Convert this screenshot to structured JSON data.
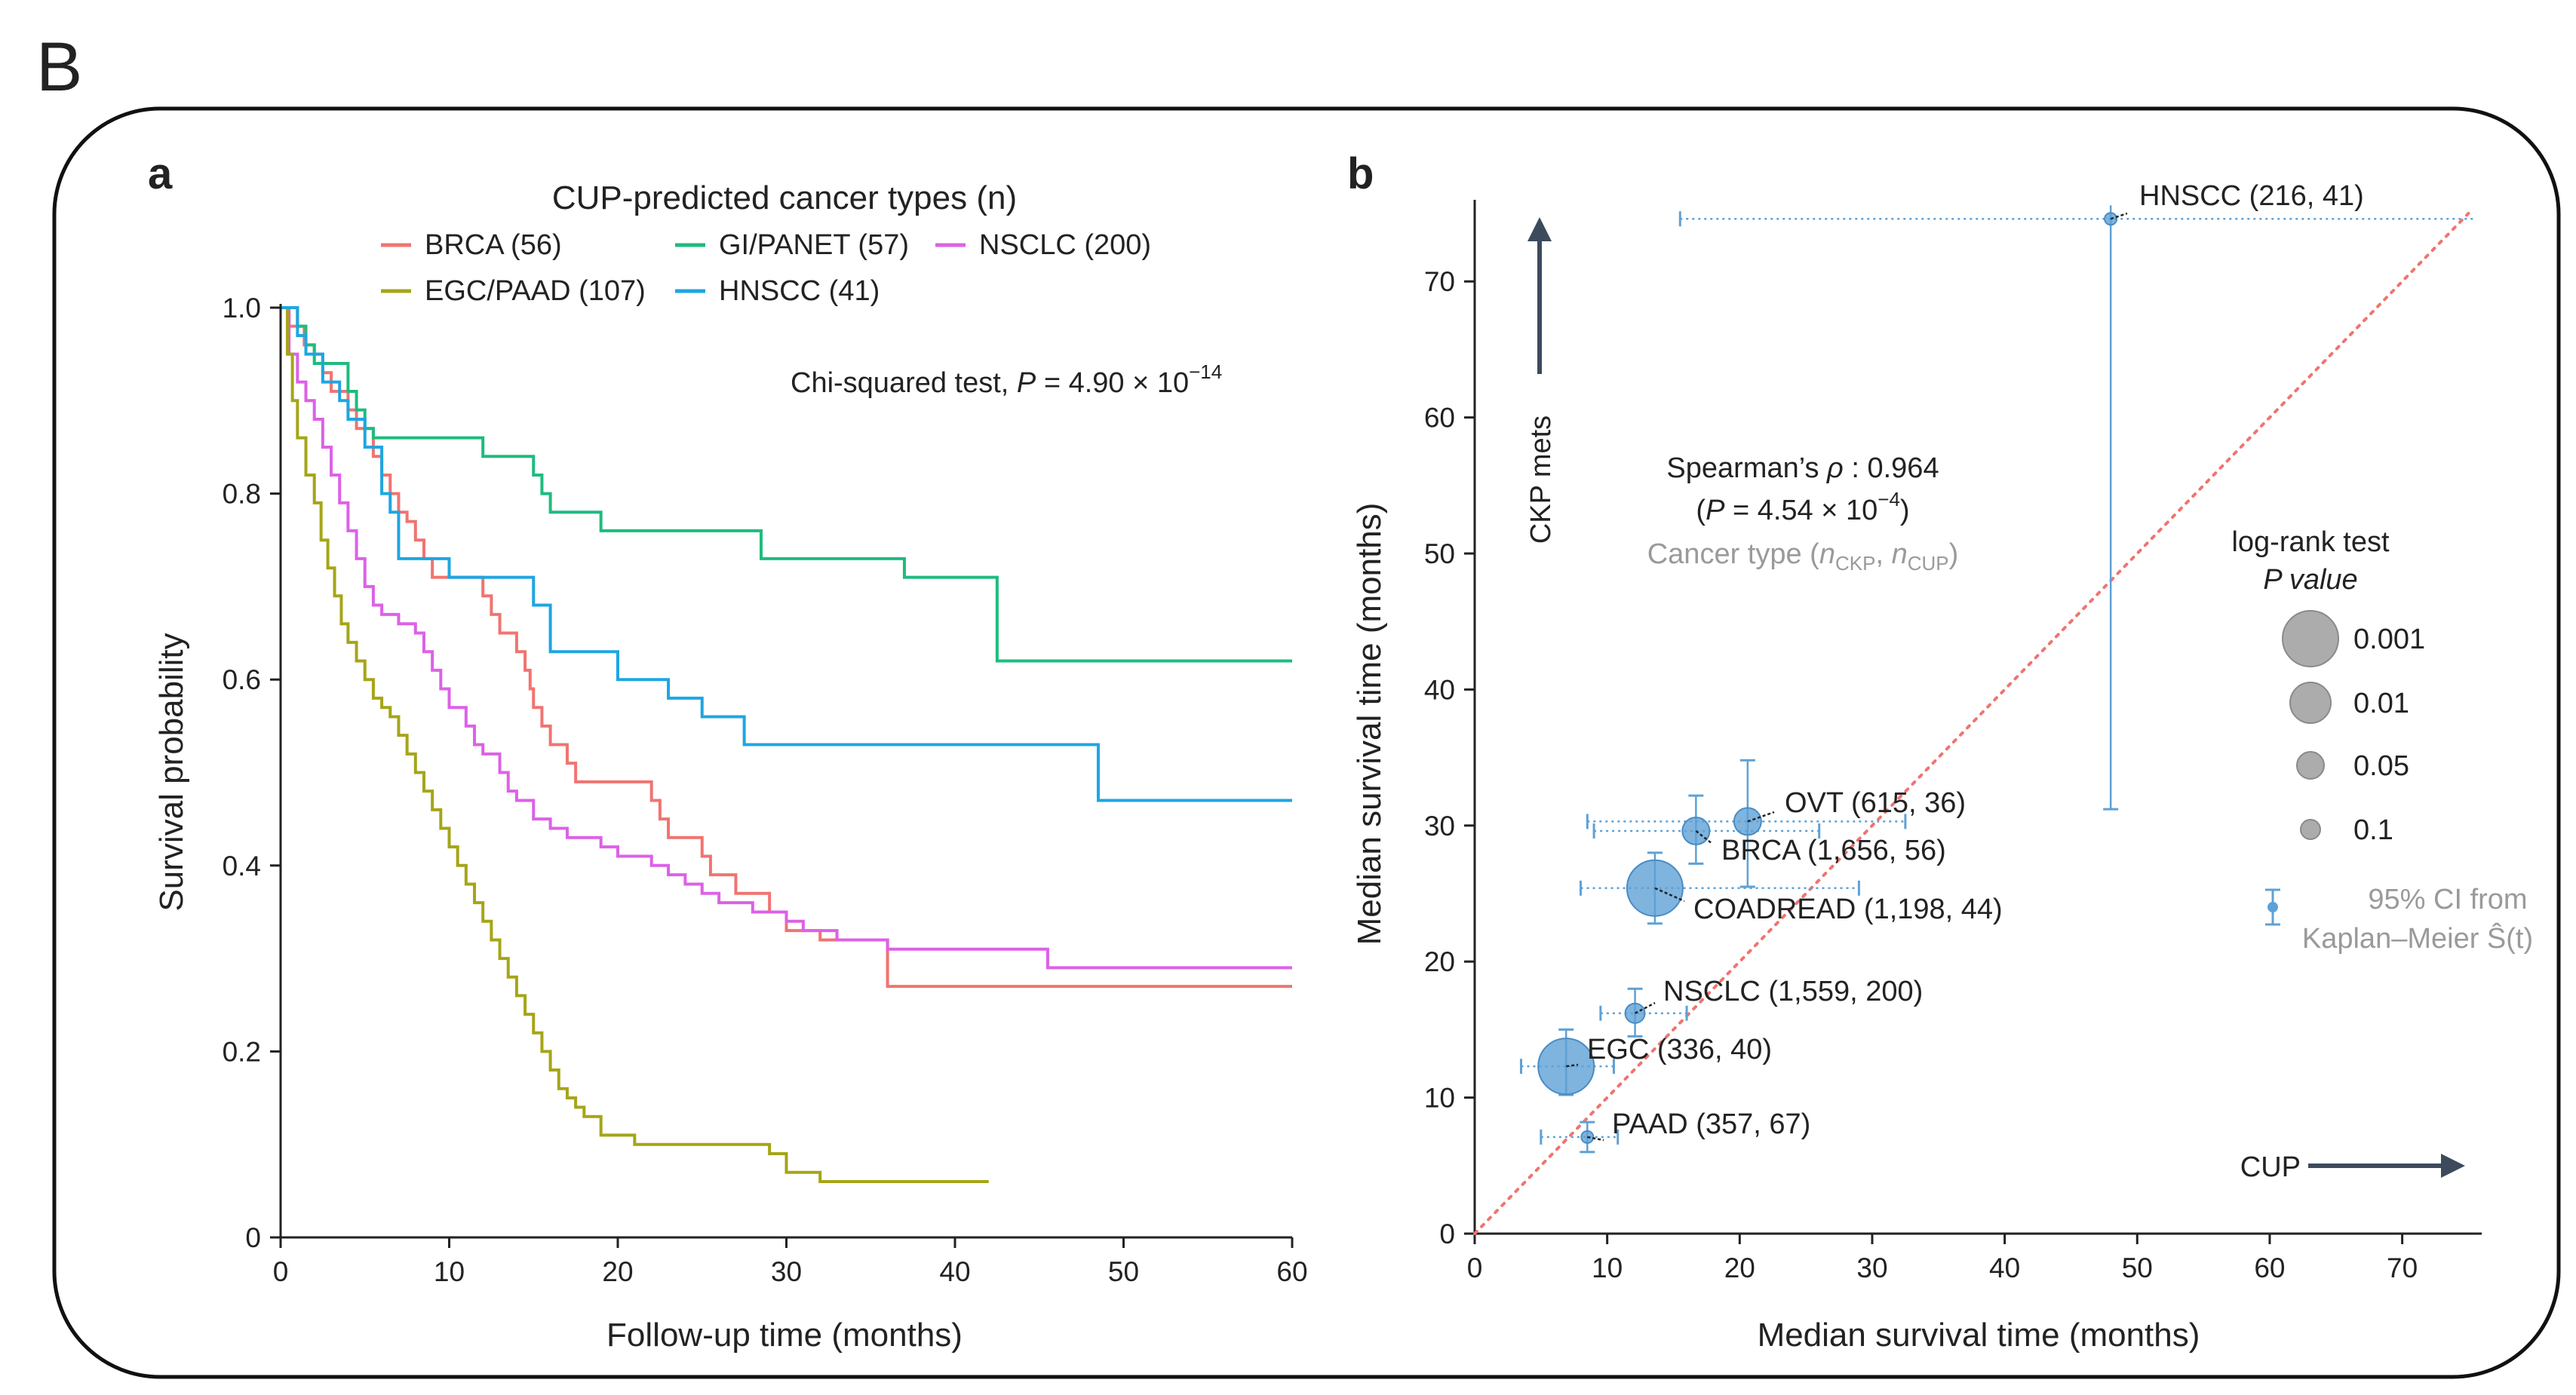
{
  "figure_label": "B",
  "chart_data": [
    {
      "type": "line",
      "subtype": "kaplan-meier step",
      "panel_label": "a",
      "title": "CUP-predicted cancer types (n)",
      "xlabel": "Follow-up time (months)",
      "ylabel": "Survival probability",
      "xlim": [
        0,
        60
      ],
      "ylim": [
        0,
        1.0
      ],
      "xticks": [
        0,
        10,
        20,
        30,
        40,
        50,
        60
      ],
      "xtick_labels": [
        "0",
        "10",
        "20",
        "30",
        "40",
        "50",
        "60"
      ],
      "yticks": [
        0,
        0.2,
        0.4,
        0.6,
        0.8,
        1.0
      ],
      "ytick_labels": [
        "0",
        "0.2",
        "0.4",
        "0.6",
        "0.8",
        "1.0"
      ],
      "annotation": {
        "prefix": "Chi-squared test, ",
        "p_symbol": "P",
        "equals": " = 4.90 × 10",
        "exponent": "−14"
      },
      "series": [
        {
          "name": "BRCA (56)",
          "color": "#f07470",
          "points": [
            [
              0,
              1.0
            ],
            [
              0.5,
              0.98
            ],
            [
              1.4,
              0.96
            ],
            [
              2,
              0.95
            ],
            [
              2.5,
              0.93
            ],
            [
              3,
              0.91
            ],
            [
              4,
              0.89
            ],
            [
              4.5,
              0.87
            ],
            [
              5.5,
              0.84
            ],
            [
              6,
              0.82
            ],
            [
              6.5,
              0.8
            ],
            [
              7,
              0.78
            ],
            [
              7.5,
              0.77
            ],
            [
              8,
              0.75
            ],
            [
              8.5,
              0.73
            ],
            [
              9,
              0.71
            ],
            [
              12,
              0.69
            ],
            [
              12.5,
              0.67
            ],
            [
              13,
              0.65
            ],
            [
              14,
              0.63
            ],
            [
              14.5,
              0.61
            ],
            [
              14.8,
              0.59
            ],
            [
              15,
              0.57
            ],
            [
              15.5,
              0.55
            ],
            [
              16,
              0.53
            ],
            [
              17,
              0.51
            ],
            [
              17.5,
              0.49
            ],
            [
              22,
              0.47
            ],
            [
              22.5,
              0.45
            ],
            [
              23,
              0.43
            ],
            [
              25,
              0.41
            ],
            [
              25.5,
              0.39
            ],
            [
              27,
              0.37
            ],
            [
              29,
              0.35
            ],
            [
              30,
              0.33
            ],
            [
              32,
              0.32
            ],
            [
              36,
              0.27
            ],
            [
              60,
              0.27
            ]
          ]
        },
        {
          "name": "GI/PANET (57)",
          "color": "#1dbc7e",
          "points": [
            [
              0,
              1.0
            ],
            [
              1,
              0.98
            ],
            [
              1.5,
              0.96
            ],
            [
              2,
              0.94
            ],
            [
              3,
              0.94
            ],
            [
              4,
              0.91
            ],
            [
              4.5,
              0.89
            ],
            [
              5,
              0.87
            ],
            [
              5.5,
              0.86
            ],
            [
              11.5,
              0.86
            ],
            [
              12,
              0.84
            ],
            [
              15,
              0.82
            ],
            [
              15.5,
              0.8
            ],
            [
              16,
              0.78
            ],
            [
              19,
              0.76
            ],
            [
              28.5,
              0.73
            ],
            [
              37,
              0.71
            ],
            [
              42.5,
              0.62
            ],
            [
              60,
              0.62
            ]
          ]
        },
        {
          "name": "NSCLC (200)",
          "color": "#dc61e6",
          "points": [
            [
              0,
              1.0
            ],
            [
              0.5,
              0.95
            ],
            [
              1,
              0.92
            ],
            [
              1.5,
              0.9
            ],
            [
              2,
              0.88
            ],
            [
              2.5,
              0.85
            ],
            [
              3,
              0.82
            ],
            [
              3.5,
              0.79
            ],
            [
              4,
              0.76
            ],
            [
              4.5,
              0.73
            ],
            [
              5,
              0.7
            ],
            [
              5.5,
              0.68
            ],
            [
              6,
              0.67
            ],
            [
              7,
              0.66
            ],
            [
              8,
              0.65
            ],
            [
              8.5,
              0.63
            ],
            [
              9,
              0.61
            ],
            [
              9.5,
              0.59
            ],
            [
              10,
              0.57
            ],
            [
              11,
              0.55
            ],
            [
              11.5,
              0.53
            ],
            [
              12,
              0.52
            ],
            [
              13,
              0.5
            ],
            [
              13.5,
              0.48
            ],
            [
              14,
              0.47
            ],
            [
              15,
              0.45
            ],
            [
              16,
              0.44
            ],
            [
              17,
              0.43
            ],
            [
              19,
              0.42
            ],
            [
              20,
              0.41
            ],
            [
              22,
              0.4
            ],
            [
              23,
              0.39
            ],
            [
              24,
              0.38
            ],
            [
              25,
              0.37
            ],
            [
              26,
              0.36
            ],
            [
              28,
              0.35
            ],
            [
              30,
              0.34
            ],
            [
              31,
              0.33
            ],
            [
              33,
              0.32
            ],
            [
              36,
              0.31
            ],
            [
              45.5,
              0.29
            ],
            [
              60,
              0.29
            ]
          ]
        },
        {
          "name": "EGC/PAAD (107)",
          "color": "#a5a518",
          "points": [
            [
              0,
              1.0
            ],
            [
              0.4,
              0.95
            ],
            [
              0.7,
              0.9
            ],
            [
              1,
              0.86
            ],
            [
              1.5,
              0.82
            ],
            [
              2,
              0.79
            ],
            [
              2.4,
              0.75
            ],
            [
              2.8,
              0.72
            ],
            [
              3.2,
              0.69
            ],
            [
              3.6,
              0.66
            ],
            [
              4,
              0.64
            ],
            [
              4.5,
              0.62
            ],
            [
              5,
              0.6
            ],
            [
              5.5,
              0.58
            ],
            [
              6,
              0.57
            ],
            [
              6.5,
              0.56
            ],
            [
              7,
              0.54
            ],
            [
              7.5,
              0.52
            ],
            [
              8,
              0.5
            ],
            [
              8.5,
              0.48
            ],
            [
              9,
              0.46
            ],
            [
              9.5,
              0.44
            ],
            [
              10,
              0.42
            ],
            [
              10.5,
              0.4
            ],
            [
              11,
              0.38
            ],
            [
              11.5,
              0.36
            ],
            [
              12,
              0.34
            ],
            [
              12.5,
              0.32
            ],
            [
              13,
              0.3
            ],
            [
              13.5,
              0.28
            ],
            [
              14,
              0.26
            ],
            [
              14.5,
              0.24
            ],
            [
              15,
              0.22
            ],
            [
              15.5,
              0.2
            ],
            [
              16,
              0.18
            ],
            [
              16.5,
              0.16
            ],
            [
              17,
              0.15
            ],
            [
              17.5,
              0.14
            ],
            [
              18,
              0.13
            ],
            [
              19,
              0.11
            ],
            [
              21,
              0.1
            ],
            [
              29,
              0.09
            ],
            [
              30,
              0.07
            ],
            [
              32,
              0.06
            ],
            [
              42,
              0.06
            ]
          ]
        },
        {
          "name": "HNSCC (41)",
          "color": "#1ea6e2",
          "points": [
            [
              0,
              1.0
            ],
            [
              1,
              0.97
            ],
            [
              1.5,
              0.95
            ],
            [
              2.5,
              0.92
            ],
            [
              3.5,
              0.9
            ],
            [
              4,
              0.88
            ],
            [
              5,
              0.85
            ],
            [
              6,
              0.8
            ],
            [
              6.5,
              0.78
            ],
            [
              7,
              0.73
            ],
            [
              9,
              0.73
            ],
            [
              10,
              0.71
            ],
            [
              15,
              0.68
            ],
            [
              16,
              0.63
            ],
            [
              20,
              0.6
            ],
            [
              23,
              0.58
            ],
            [
              25,
              0.56
            ],
            [
              27.5,
              0.53
            ],
            [
              48,
              0.53
            ],
            [
              48.5,
              0.47
            ],
            [
              60,
              0.47
            ]
          ]
        }
      ]
    },
    {
      "type": "scatter",
      "panel_label": "b",
      "xlabel": "Median survival time (months)",
      "ylabel": "Median survival time (months)",
      "xlim": [
        0,
        76
      ],
      "ylim": [
        0,
        76
      ],
      "xticks": [
        0,
        10,
        20,
        30,
        40,
        50,
        60,
        70
      ],
      "xtick_labels": [
        "0",
        "10",
        "20",
        "30",
        "40",
        "50",
        "60",
        "70"
      ],
      "yticks": [
        0,
        10,
        20,
        30,
        40,
        50,
        60,
        70
      ],
      "ytick_labels": [
        "0",
        "10",
        "20",
        "30",
        "40",
        "50",
        "60",
        "70"
      ],
      "identity_line": true,
      "identity_color": "#f07470",
      "point_color": "#5ea1d6",
      "arrow_y_label": "CKP mets",
      "arrow_x_label": "CUP",
      "stats_line1": {
        "text": "Spearman’s ",
        "symbol": "ρ",
        "value": " : 0.964"
      },
      "stats_line2": {
        "open": "(",
        "p_symbol": "P",
        "equals": " = 4.54 × 10",
        "exponent": "−4",
        "close": ")"
      },
      "subtitle": {
        "prefix": "Cancer type (",
        "n1": "n",
        "s1": "CKP",
        "sep": ", ",
        "n2": "n",
        "s2": "CUP",
        "close": ")"
      },
      "size_legend_title": [
        "log-rank test",
        "P value"
      ],
      "size_legend": [
        {
          "label": "0.001",
          "r": 37
        },
        {
          "label": "0.01",
          "r": 27
        },
        {
          "label": "0.05",
          "r": 18
        },
        {
          "label": "0.1",
          "r": 13
        }
      ],
      "ci_legend": [
        "95% CI from",
        "Kaplan–Meier Ŝ(t)"
      ],
      "points": [
        {
          "label": "HNSCC (216, 41)",
          "x": 48,
          "y": 74.6,
          "xerr": [
            15.5,
            76
          ],
          "yerr": [
            31.2,
            76
          ],
          "pval": 0.5
        },
        {
          "label": "OVT (615, 36)",
          "x": 20.6,
          "y": 30.3,
          "xerr": [
            8.5,
            32.5
          ],
          "yerr": [
            25.5,
            34.8
          ],
          "pval": 0.05
        },
        {
          "label": "BRCA (1,656, 56)",
          "x": 16.7,
          "y": 29.6,
          "xerr": [
            9,
            26
          ],
          "yerr": [
            27.2,
            32.2
          ],
          "pval": 0.05
        },
        {
          "label": "COADREAD (1,198, 44)",
          "x": 13.6,
          "y": 25.4,
          "xerr": [
            8,
            29
          ],
          "yerr": [
            22.8,
            28
          ],
          "pval": 0.001
        },
        {
          "label": "NSCLC (1,559, 200)",
          "x": 12.1,
          "y": 16.2,
          "xerr": [
            9.5,
            16
          ],
          "yerr": [
            14.5,
            18
          ],
          "pval": 0.1
        },
        {
          "label": "EGC (336, 40)",
          "x": 6.9,
          "y": 12.3,
          "xerr": [
            3.5,
            10.5
          ],
          "yerr": [
            10.2,
            15
          ],
          "pval": 0.001
        },
        {
          "label": "PAAD (357, 67)",
          "x": 8.5,
          "y": 7.1,
          "xerr": [
            5,
            10.8
          ],
          "yerr": [
            6,
            8.2
          ],
          "pval": 0.3
        }
      ]
    }
  ]
}
